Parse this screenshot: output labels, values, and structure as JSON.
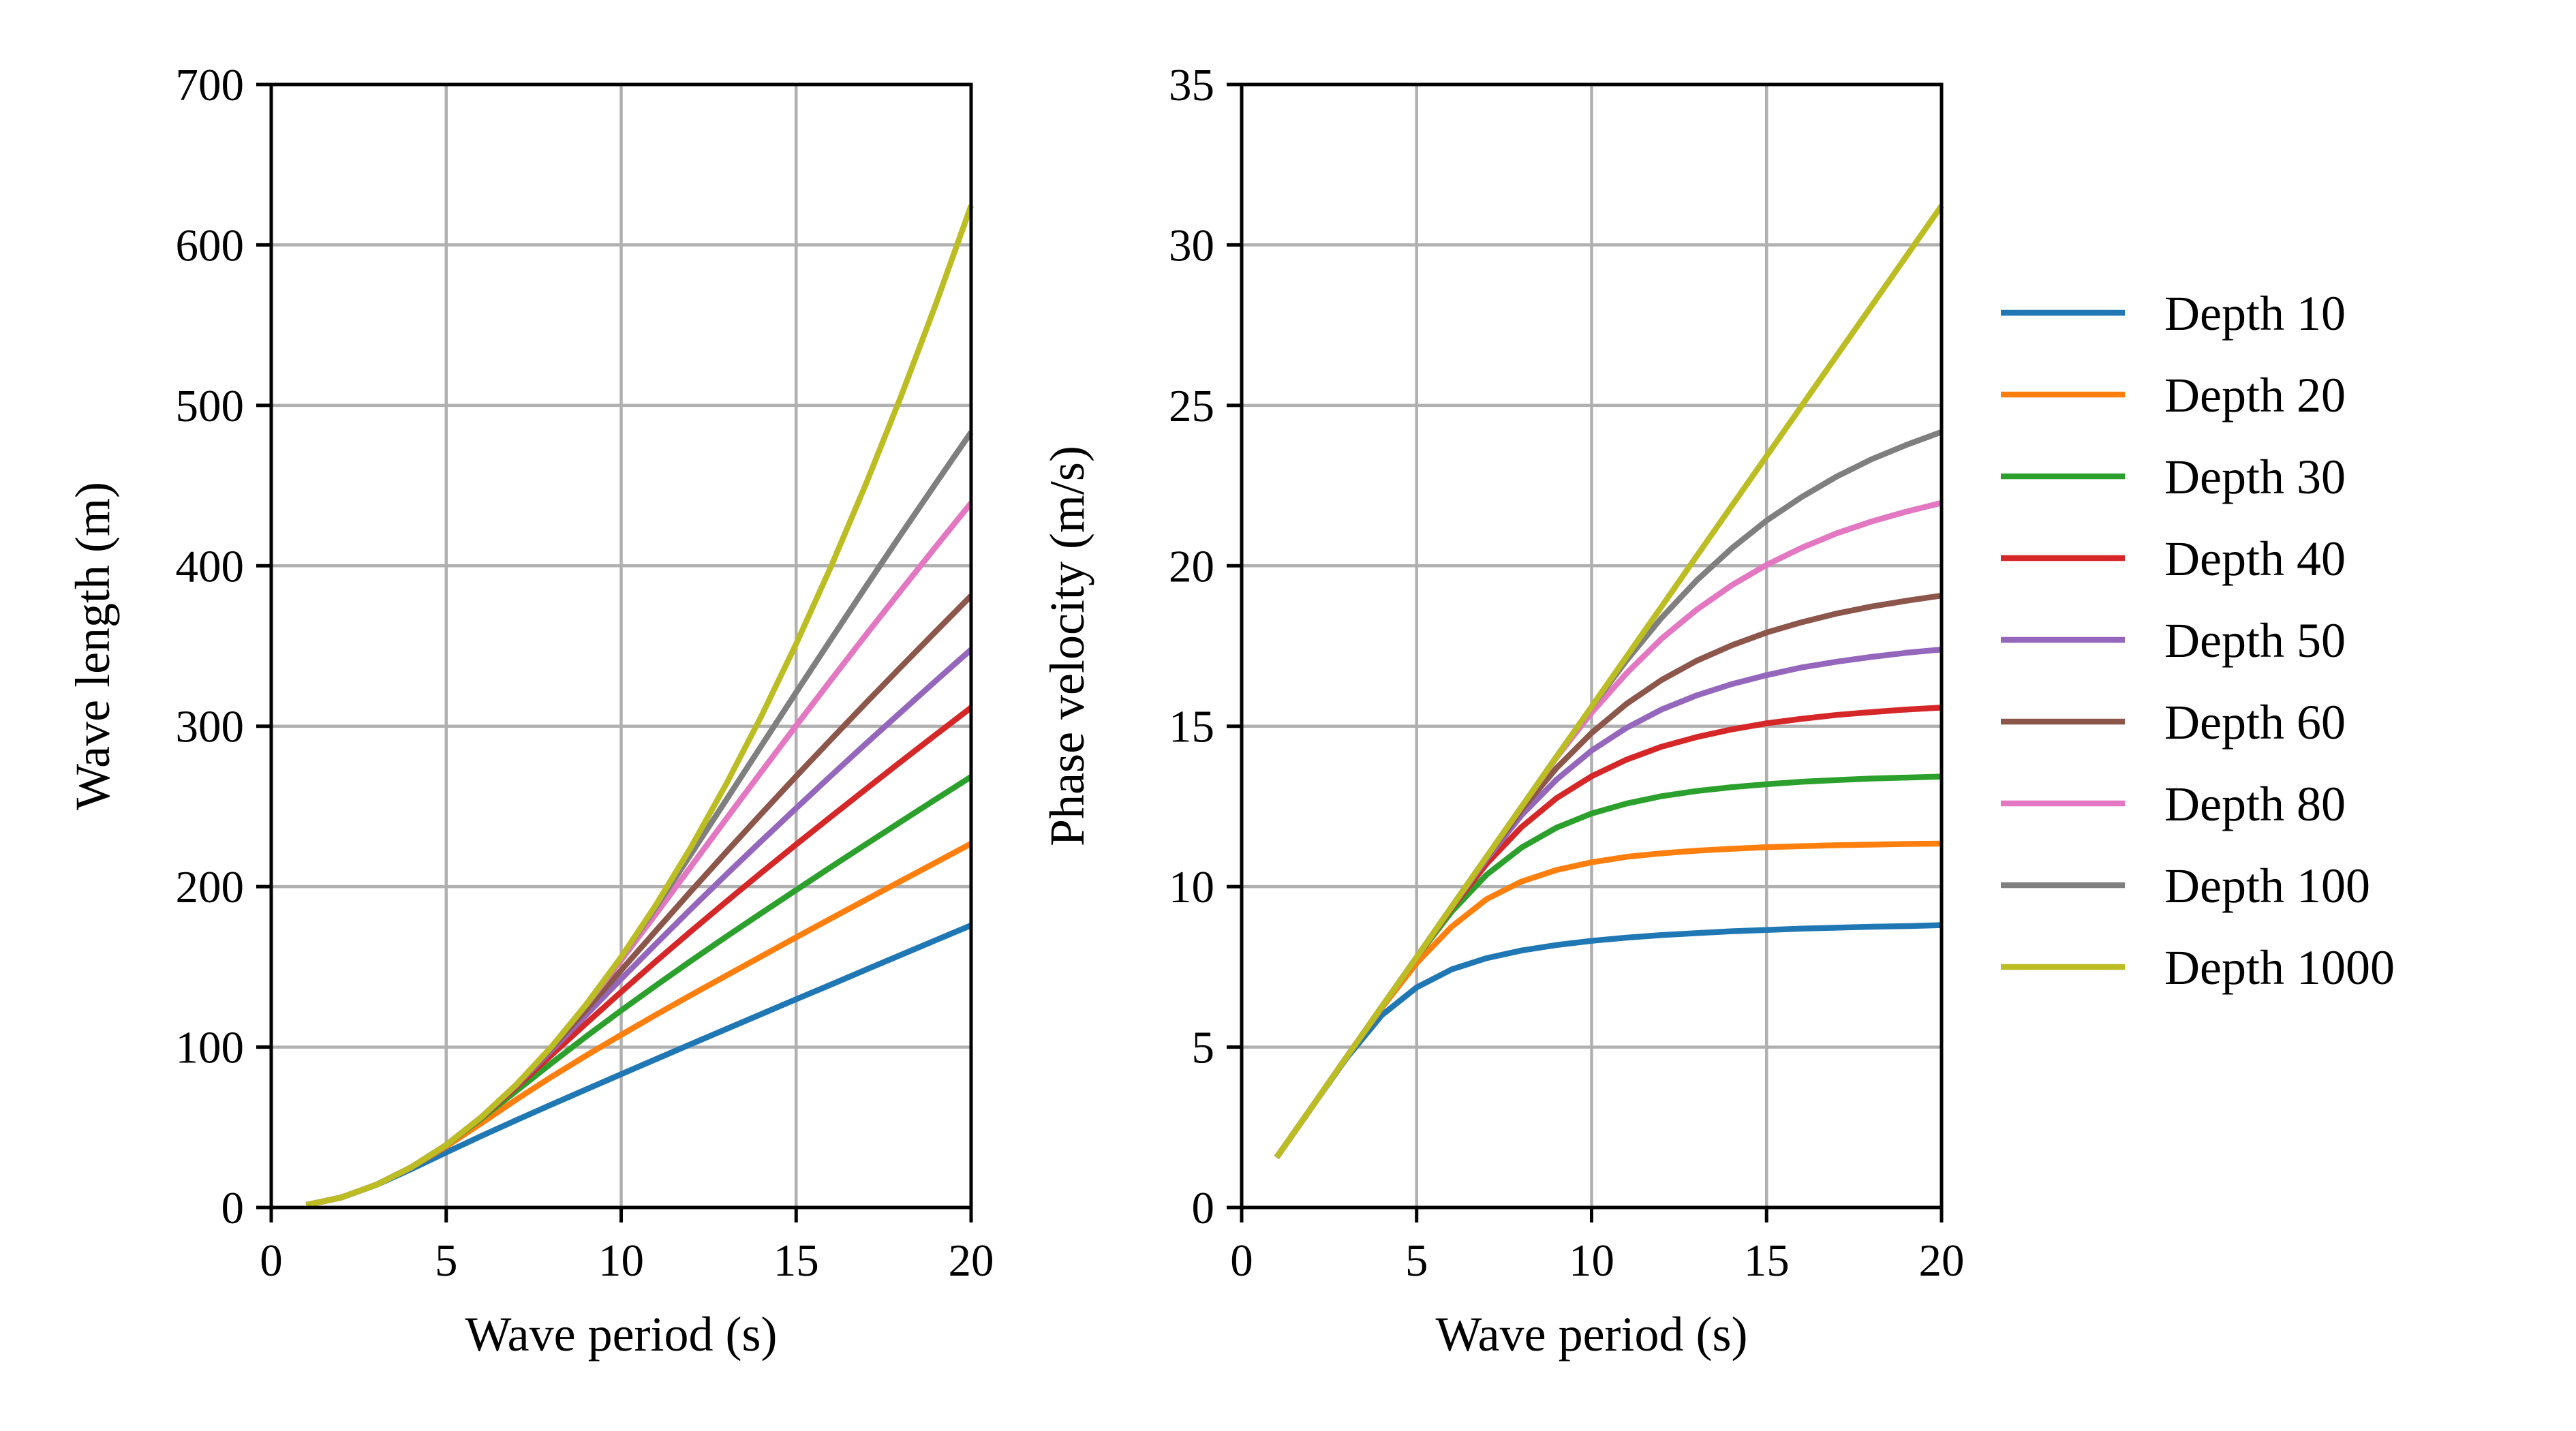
{
  "chart_data": [
    {
      "type": "line",
      "title": "",
      "xlabel": "Wave period (s)",
      "ylabel": "Wave length (m)",
      "xlim": [
        0,
        20
      ],
      "ylim": [
        0,
        700
      ],
      "xticks": [
        "0",
        "5",
        "10",
        "15",
        "20"
      ],
      "yticks": [
        "0",
        "100",
        "200",
        "300",
        "400",
        "500",
        "600",
        "700"
      ],
      "grid": true,
      "x": [
        1,
        2,
        3,
        4,
        5,
        6,
        7,
        8,
        9,
        10,
        11,
        12,
        13,
        14,
        15,
        16,
        17,
        18,
        19,
        20
      ],
      "series": [
        {
          "name": "Depth 10",
          "values": [
            1.56,
            6.24,
            14.0,
            23.9,
            34.3,
            44.5,
            54.4,
            64.1,
            73.6,
            83.1,
            92.5,
            101.9,
            111.2,
            120.5,
            129.8,
            139.0,
            148.3,
            157.5,
            166.7,
            175.9
          ]
        },
        {
          "name": "Depth 20",
          "values": [
            1.56,
            6.24,
            14.1,
            24.9,
            38.1,
            52.5,
            67.3,
            81.3,
            94.7,
            107.6,
            120.2,
            132.5,
            144.5,
            156.5,
            168.4,
            180.2,
            191.9,
            203.6,
            215.2,
            226.8
          ]
        },
        {
          "name": "Depth 30",
          "values": [
            1.56,
            6.24,
            14.1,
            25.0,
            39.0,
            55.3,
            72.6,
            89.8,
            106.6,
            122.8,
            138.5,
            153.8,
            168.8,
            183.4,
            197.9,
            212.3,
            226.5,
            240.6,
            254.6,
            268.5
          ]
        },
        {
          "name": "Depth 40",
          "values": [
            1.56,
            6.24,
            14.1,
            25.0,
            39.0,
            56.0,
            75.0,
            94.9,
            114.8,
            134.4,
            153.6,
            172.3,
            190.6,
            208.6,
            226.3,
            243.7,
            260.9,
            278.0,
            294.9,
            311.6
          ]
        },
        {
          "name": "Depth 50",
          "values": [
            1.56,
            6.24,
            14.1,
            25.0,
            39.0,
            56.2,
            76.0,
            97.8,
            120.1,
            142.4,
            164.5,
            186.2,
            207.5,
            228.3,
            248.9,
            269.2,
            289.2,
            308.9,
            328.5,
            347.8
          ]
        },
        {
          "name": "Depth 60",
          "values": [
            1.56,
            6.24,
            14.1,
            25.0,
            39.0,
            56.2,
            76.4,
            99.2,
            123.3,
            147.9,
            172.7,
            197.3,
            221.5,
            245.3,
            268.8,
            291.8,
            314.6,
            337.1,
            359.3,
            381.3
          ]
        },
        {
          "name": "Depth 80",
          "values": [
            1.56,
            6.24,
            14.1,
            25.0,
            39.0,
            56.2,
            76.5,
            99.9,
            126.3,
            154.2,
            183.2,
            212.7,
            242.2,
            271.4,
            300.4,
            328.9,
            357.1,
            384.8,
            412.2,
            439.2
          ]
        },
        {
          "name": "Depth 100",
          "values": [
            1.56,
            6.24,
            14.1,
            25.0,
            39.0,
            56.2,
            76.5,
            99.9,
            126.5,
            156.0,
            187.5,
            220.5,
            254.0,
            287.6,
            321.1,
            354.3,
            387.2,
            419.7,
            451.7,
            483.3
          ]
        },
        {
          "name": "Depth 1000",
          "values": [
            1.56,
            6.24,
            14.1,
            25.0,
            39.0,
            56.2,
            76.5,
            99.9,
            126.5,
            156.1,
            188.9,
            224.8,
            263.9,
            306.0,
            351.3,
            399.7,
            451.2,
            505.8,
            563.6,
            624.5
          ]
        }
      ]
    },
    {
      "type": "line",
      "title": "",
      "xlabel": "Wave period (s)",
      "ylabel": "Phase velocity (m/s)",
      "xlim": [
        0,
        20
      ],
      "ylim": [
        0,
        35
      ],
      "xticks": [
        "0",
        "5",
        "10",
        "15",
        "20"
      ],
      "yticks": [
        "0",
        "5",
        "10",
        "15",
        "20",
        "25",
        "30",
        "35"
      ],
      "grid": true,
      "x": [
        1,
        2,
        3,
        4,
        5,
        6,
        7,
        8,
        9,
        10,
        11,
        12,
        13,
        14,
        15,
        16,
        17,
        18,
        19,
        20
      ],
      "series": [
        {
          "name": "Depth 10",
          "values": [
            1.56,
            3.12,
            4.66,
            5.99,
            6.86,
            7.42,
            7.77,
            8.01,
            8.18,
            8.31,
            8.41,
            8.49,
            8.55,
            8.61,
            8.65,
            8.69,
            8.72,
            8.75,
            8.77,
            8.8
          ]
        },
        {
          "name": "Depth 20",
          "values": [
            1.56,
            3.12,
            4.69,
            6.22,
            7.62,
            8.75,
            9.61,
            10.16,
            10.52,
            10.76,
            10.93,
            11.04,
            11.12,
            11.18,
            11.23,
            11.26,
            11.29,
            11.31,
            11.33,
            11.34
          ]
        },
        {
          "name": "Depth 30",
          "values": [
            1.56,
            3.12,
            4.69,
            6.25,
            7.8,
            9.22,
            10.37,
            11.22,
            11.84,
            12.28,
            12.59,
            12.82,
            12.98,
            13.1,
            13.19,
            13.27,
            13.32,
            13.37,
            13.4,
            13.43
          ]
        },
        {
          "name": "Depth 40",
          "values": [
            1.56,
            3.12,
            4.69,
            6.25,
            7.8,
            9.33,
            10.71,
            11.86,
            12.76,
            13.44,
            13.96,
            14.36,
            14.66,
            14.9,
            15.09,
            15.23,
            15.35,
            15.44,
            15.52,
            15.58
          ]
        },
        {
          "name": "Depth 50",
          "values": [
            1.56,
            3.12,
            4.69,
            6.25,
            7.8,
            9.36,
            10.86,
            12.23,
            13.34,
            14.24,
            14.95,
            15.52,
            15.96,
            16.31,
            16.59,
            16.83,
            17.01,
            17.16,
            17.29,
            17.39
          ]
        },
        {
          "name": "Depth 60",
          "values": [
            1.56,
            3.12,
            4.69,
            6.25,
            7.8,
            9.37,
            10.91,
            12.4,
            13.7,
            14.79,
            15.7,
            16.44,
            17.04,
            17.52,
            17.92,
            18.24,
            18.51,
            18.73,
            18.91,
            19.07
          ]
        },
        {
          "name": "Depth 80",
          "values": [
            1.56,
            3.12,
            4.69,
            6.25,
            7.8,
            9.37,
            10.93,
            12.49,
            14.03,
            15.42,
            16.65,
            17.73,
            18.63,
            19.39,
            20.03,
            20.56,
            21.01,
            21.38,
            21.69,
            21.96
          ]
        },
        {
          "name": "Depth 100",
          "values": [
            1.56,
            3.12,
            4.69,
            6.25,
            7.8,
            9.37,
            10.93,
            12.49,
            14.06,
            15.6,
            17.05,
            18.38,
            19.54,
            20.54,
            21.41,
            22.14,
            22.78,
            23.32,
            23.77,
            24.17
          ]
        },
        {
          "name": "Depth 1000",
          "values": [
            1.56,
            3.12,
            4.69,
            6.25,
            7.8,
            9.37,
            10.93,
            12.49,
            14.05,
            15.61,
            17.17,
            18.73,
            20.3,
            21.86,
            23.42,
            24.98,
            26.54,
            28.1,
            29.66,
            31.22
          ]
        }
      ]
    }
  ],
  "legend": {
    "placement": "right",
    "entries": [
      {
        "label": "Depth 10",
        "color": "#1f77b4"
      },
      {
        "label": "Depth 20",
        "color": "#ff7f0e"
      },
      {
        "label": "Depth 30",
        "color": "#2ca02c"
      },
      {
        "label": "Depth 40",
        "color": "#d62728"
      },
      {
        "label": "Depth 50",
        "color": "#9467bd"
      },
      {
        "label": "Depth 60",
        "color": "#8c564b"
      },
      {
        "label": "Depth 80",
        "color": "#e377c2"
      },
      {
        "label": "Depth 100",
        "color": "#7f7f7f"
      },
      {
        "label": "Depth 1000",
        "color": "#bcbd22"
      }
    ]
  }
}
